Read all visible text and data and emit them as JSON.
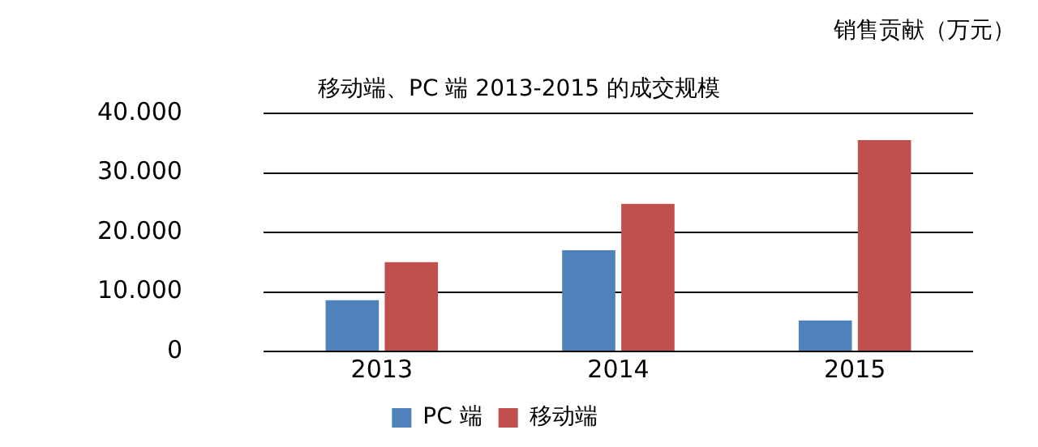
{
  "chart_data": {
    "type": "bar",
    "title": "移动端、PC 端 2013-2015 的成交规模",
    "annotations": [
      "销售贡献（万元）"
    ],
    "categories": [
      "2013",
      "2014",
      "2015"
    ],
    "series": [
      {
        "name": "PC 端",
        "color": "#4f81bd",
        "values": [
          8600,
          17000,
          5200
        ]
      },
      {
        "name": "移动端",
        "color": "#c0504d",
        "values": [
          15000,
          24800,
          35500
        ]
      }
    ],
    "ylim": [
      0,
      40000
    ],
    "yticks": [
      0,
      {
        "value": 10000,
        "label": "10.000"
      },
      {
        "value": 20000,
        "label": "20.000"
      },
      {
        "value": 30000,
        "label": "30.000"
      },
      {
        "value": 40000,
        "label": "40.000"
      }
    ],
    "grid": "y",
    "legend": "bottom"
  }
}
